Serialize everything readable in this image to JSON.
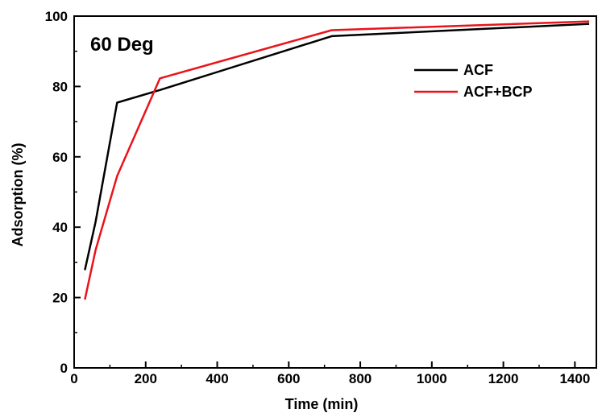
{
  "chart_data": {
    "type": "line",
    "title": "",
    "annotation": "60 Deg",
    "xlabel": "Time (min)",
    "ylabel": "Adsorption (%)",
    "xlim": [
      0,
      1460
    ],
    "ylim": [
      0,
      100
    ],
    "x_ticks": [
      0,
      200,
      400,
      600,
      800,
      1000,
      1200,
      1400
    ],
    "y_ticks": [
      0,
      20,
      40,
      60,
      80,
      100
    ],
    "grid": false,
    "legend_position": "top-right",
    "series": [
      {
        "name": "ACF",
        "color": "#000000",
        "x": [
          30,
          60,
          120,
          240,
          720,
          1440
        ],
        "y": [
          27.8,
          41.5,
          75.4,
          79.0,
          94.3,
          97.8
        ]
      },
      {
        "name": "ACF+BCP",
        "color": "#e8141b",
        "x": [
          30,
          60,
          120,
          240,
          720,
          1440
        ],
        "y": [
          19.4,
          33.5,
          54.5,
          82.3,
          96.0,
          98.5
        ]
      }
    ]
  }
}
